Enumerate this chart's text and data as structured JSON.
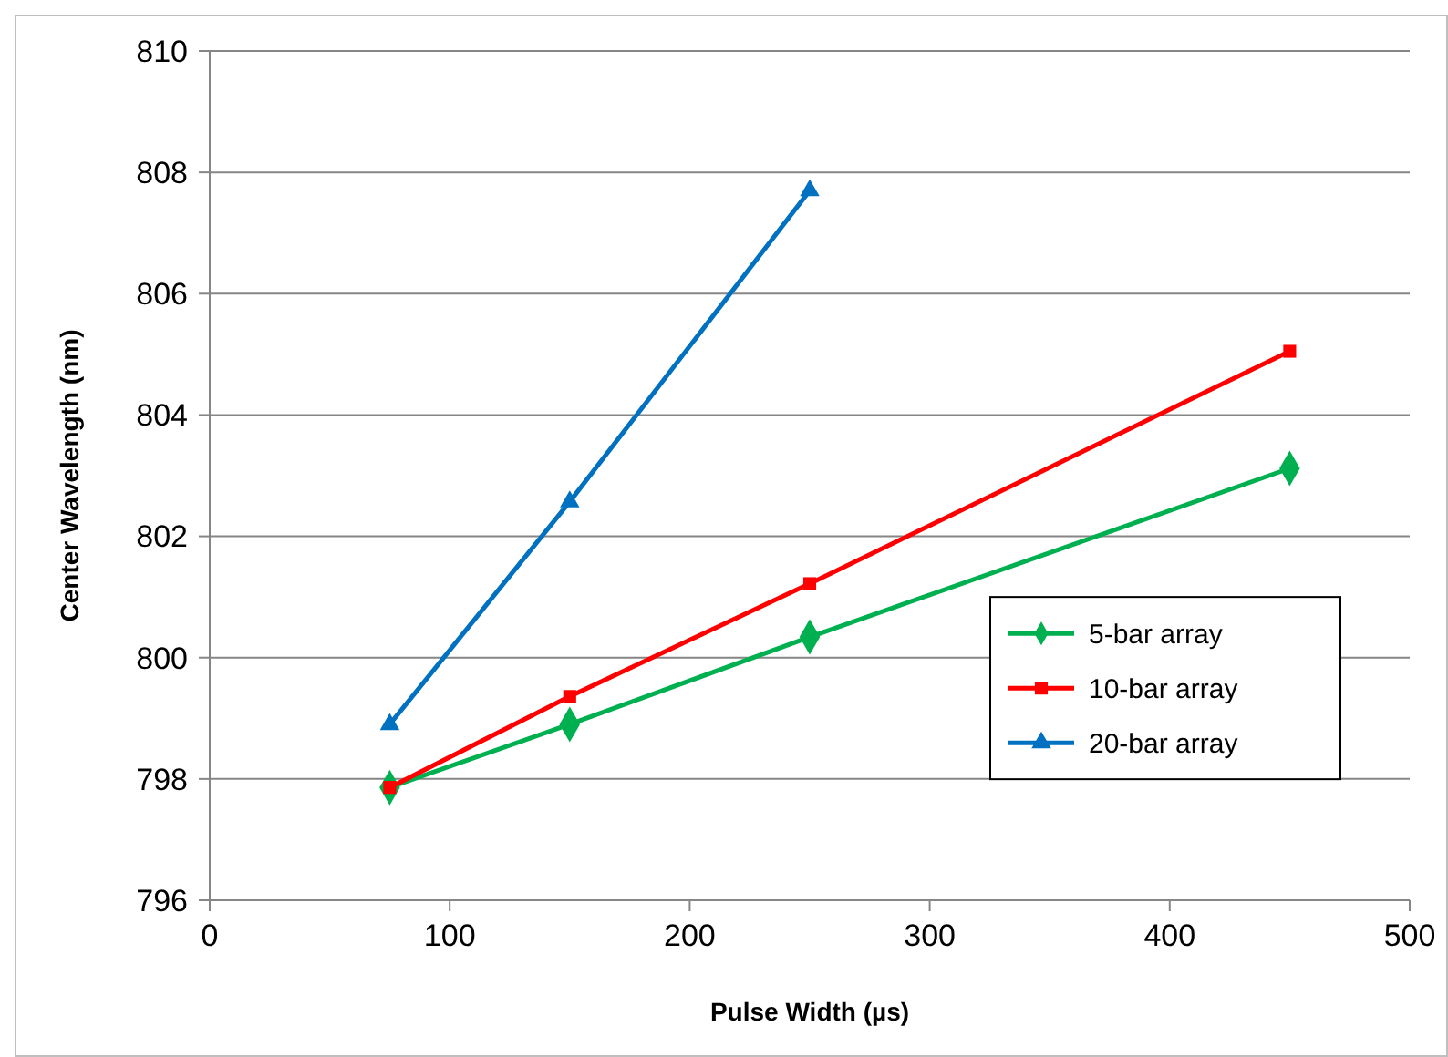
{
  "chart_data": {
    "type": "line",
    "xlabel": "Pulse Width (µs)",
    "ylabel": "Center Wavelength (nm)",
    "xlim": [
      0,
      500
    ],
    "xticks": [
      0,
      100,
      200,
      300,
      400,
      500
    ],
    "ylim": [
      796,
      810
    ],
    "yticks": [
      796,
      798,
      800,
      802,
      804,
      806,
      808,
      810
    ],
    "grid": "y",
    "legend": "right",
    "series": [
      {
        "name": "5-bar array",
        "color": "#00b050",
        "marker": "diamond",
        "x": [
          75,
          150,
          250,
          450
        ],
        "values": [
          797.86,
          798.9,
          800.34,
          803.12
        ]
      },
      {
        "name": "10-bar array",
        "color": "#ff0000",
        "marker": "square",
        "x": [
          75,
          150,
          250,
          450
        ],
        "values": [
          797.86,
          799.36,
          801.22,
          805.05
        ]
      },
      {
        "name": "20-bar array",
        "color": "#0070c0",
        "marker": "triangle",
        "x": [
          75,
          150,
          250
        ],
        "values": [
          798.9,
          802.57,
          807.7
        ]
      }
    ]
  }
}
